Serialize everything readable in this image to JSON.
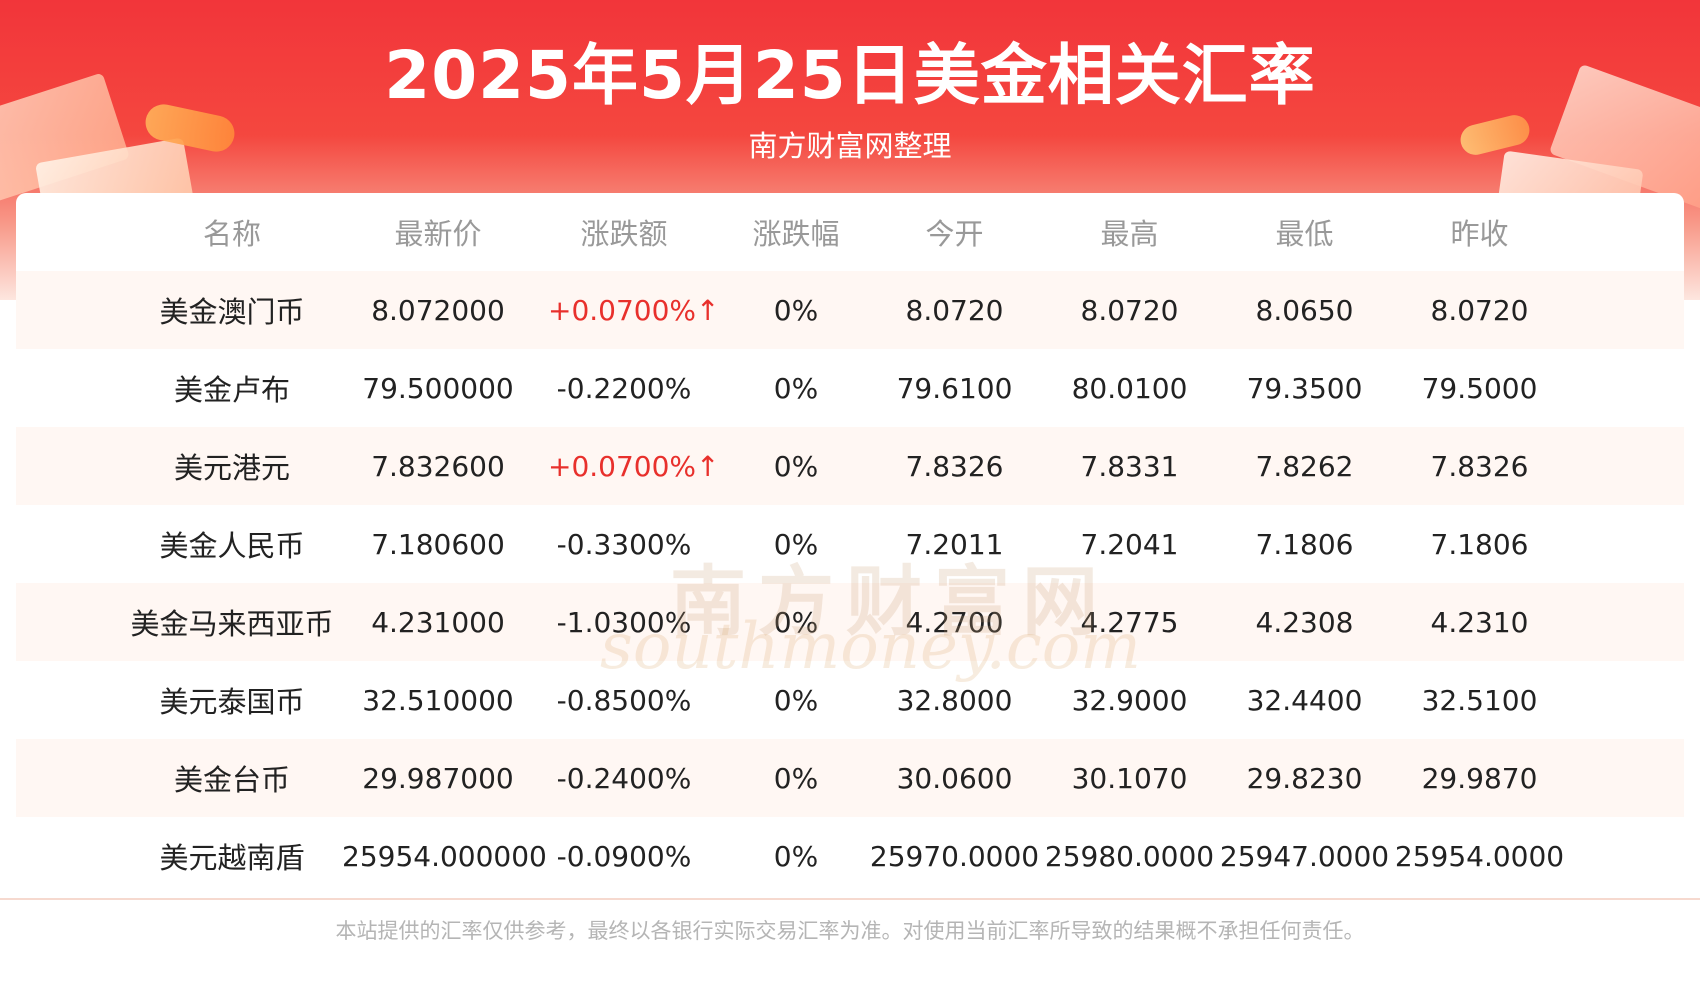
{
  "header": {
    "title": "2025年5月25日美金相关汇率",
    "subtitle": "南方财富网整理"
  },
  "table": {
    "columns": [
      "名称",
      "最新价",
      "涨跌额",
      "涨跌幅",
      "今开",
      "最高",
      "最低",
      "昨收"
    ],
    "rows": [
      {
        "name": "美金澳门币",
        "latest": "8.072000",
        "change": "+0.0700%↑",
        "change_up": true,
        "pct": "0%",
        "open": "8.0720",
        "high": "8.0720",
        "low": "8.0650",
        "prev": "8.0720"
      },
      {
        "name": "美金卢布",
        "latest": "79.500000",
        "change": "-0.2200%",
        "change_up": false,
        "pct": "0%",
        "open": "79.6100",
        "high": "80.0100",
        "low": "79.3500",
        "prev": "79.5000"
      },
      {
        "name": "美元港元",
        "latest": "7.832600",
        "change": "+0.0700%↑",
        "change_up": true,
        "pct": "0%",
        "open": "7.8326",
        "high": "7.8331",
        "low": "7.8262",
        "prev": "7.8326"
      },
      {
        "name": "美金人民币",
        "latest": "7.180600",
        "change": "-0.3300%",
        "change_up": false,
        "pct": "0%",
        "open": "7.2011",
        "high": "7.2041",
        "low": "7.1806",
        "prev": "7.1806"
      },
      {
        "name": "美金马来西亚币",
        "latest": "4.231000",
        "change": "-1.0300%",
        "change_up": false,
        "pct": "0%",
        "open": "4.2700",
        "high": "4.2775",
        "low": "4.2308",
        "prev": "4.2310"
      },
      {
        "name": "美元泰国币",
        "latest": "32.510000",
        "change": "-0.8500%",
        "change_up": false,
        "pct": "0%",
        "open": "32.8000",
        "high": "32.9000",
        "low": "32.4400",
        "prev": "32.5100"
      },
      {
        "name": "美金台币",
        "latest": "29.987000",
        "change": "-0.2400%",
        "change_up": false,
        "pct": "0%",
        "open": "30.0600",
        "high": "30.1070",
        "low": "29.8230",
        "prev": "29.9870"
      },
      {
        "name": "美元越南盾",
        "latest": "25954.000000",
        "change": "-0.0900%",
        "change_up": false,
        "pct": "0%",
        "open": "25970.0000",
        "high": "25980.0000",
        "low": "25947.0000",
        "prev": "25954.0000"
      }
    ]
  },
  "watermark": {
    "cn": "南方财富网",
    "en": "southmoney.com"
  },
  "footer": {
    "disclaimer": "本站提供的汇率仅供参考，最终以各银行实际交易汇率为准。对使用当前汇率所导致的结果概不承担任何责任。"
  },
  "colors": {
    "header_red": "#f2353a",
    "up": "#e8302c",
    "header_text": "#999999",
    "row_alt": "#fff7f3"
  }
}
